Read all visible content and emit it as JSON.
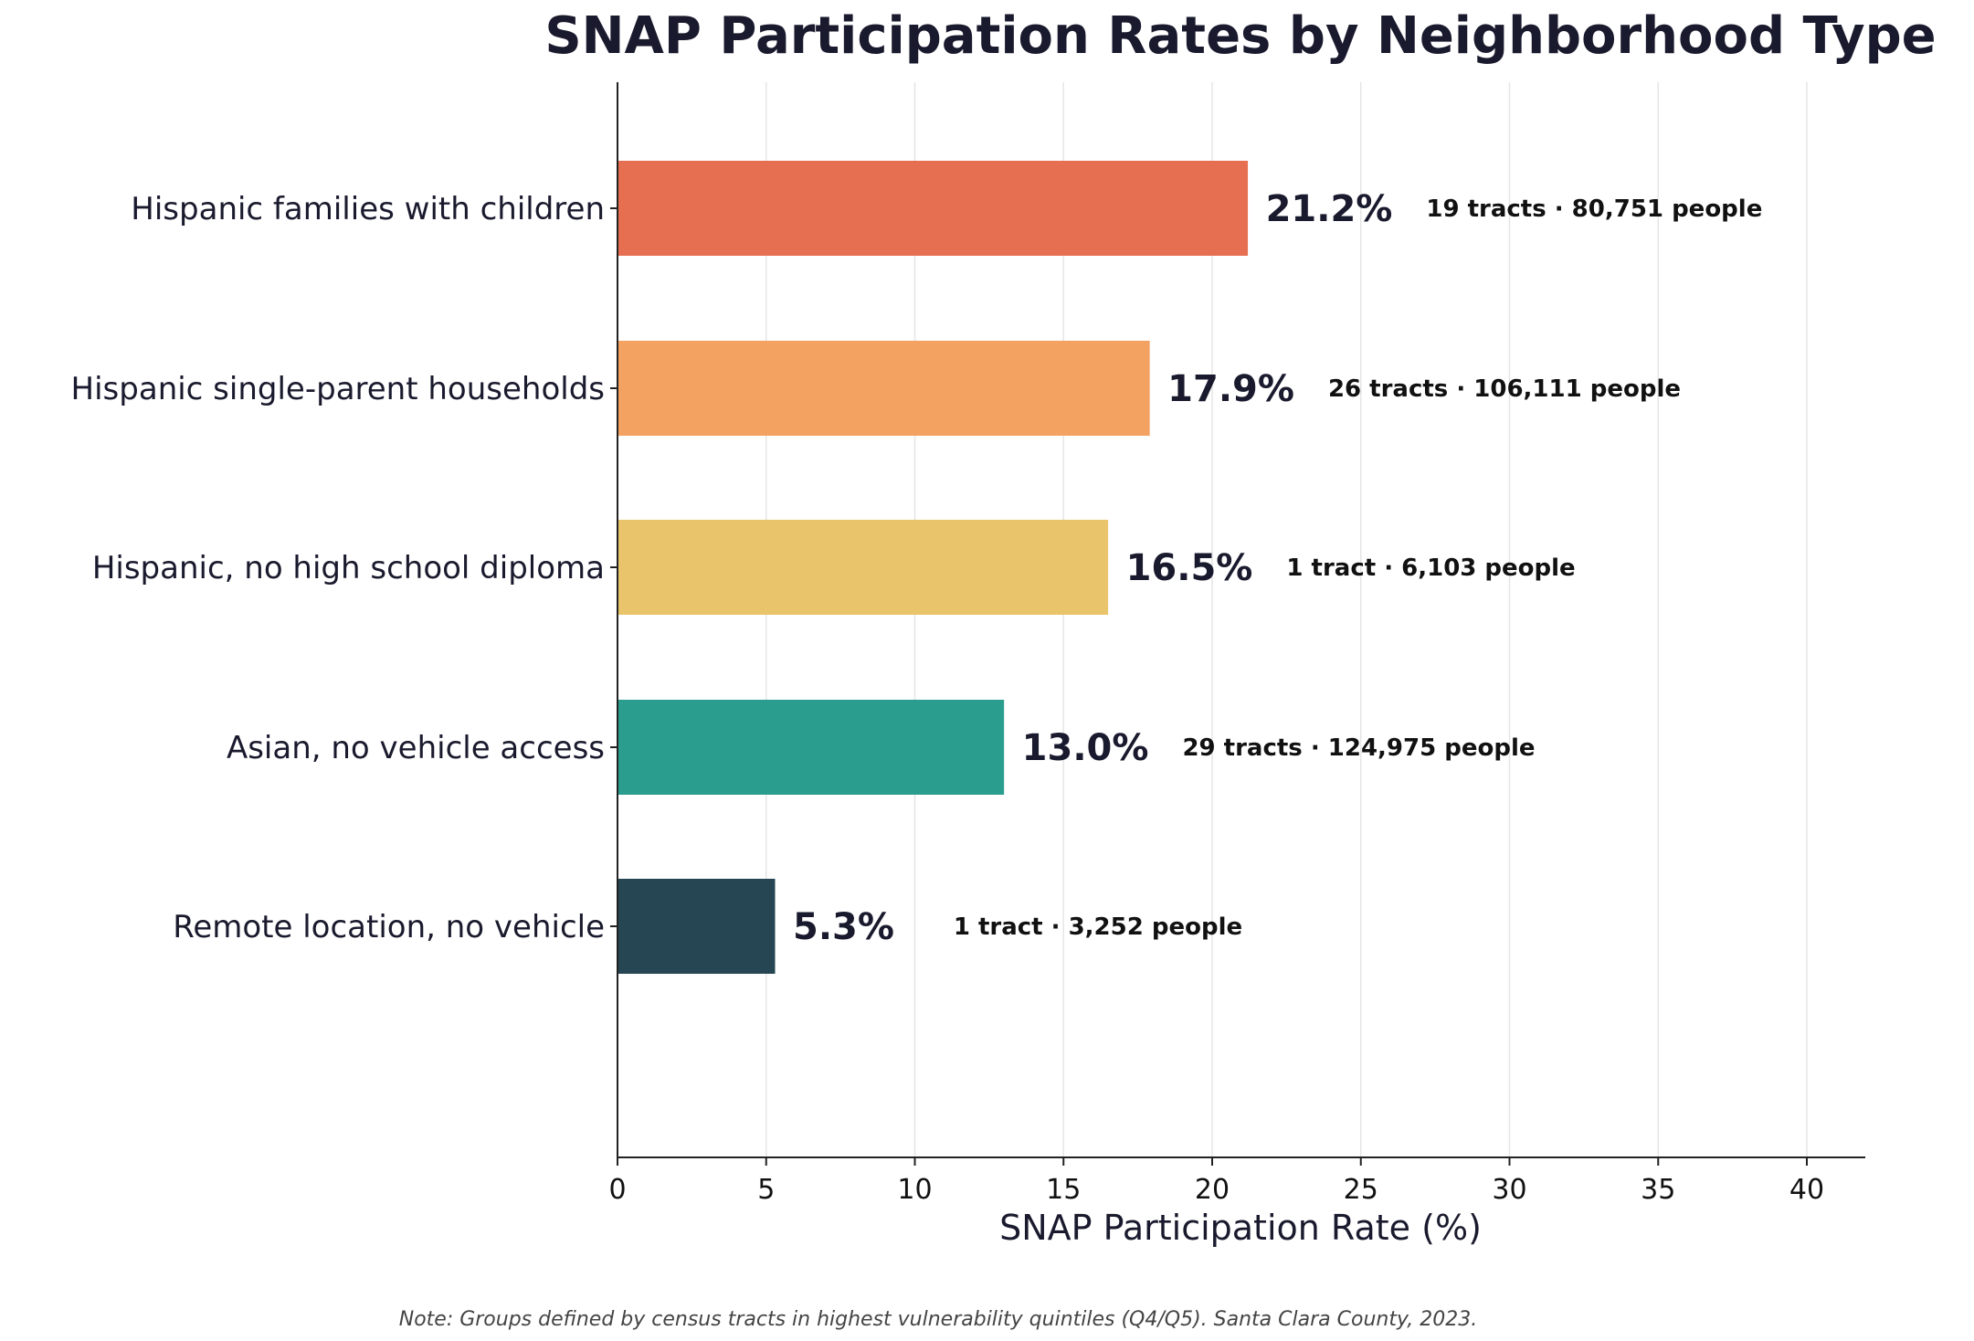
{
  "chart_data": {
    "type": "bar",
    "orientation": "horizontal",
    "title": "SNAP Participation Rates by Neighborhood Type",
    "xlabel": "SNAP Participation Rate (%)",
    "ylabel": "",
    "xlim": [
      0,
      42
    ],
    "xticks": [
      0,
      5,
      10,
      15,
      20,
      25,
      30,
      35,
      40
    ],
    "grid": "vertical",
    "categories": [
      "Hispanic families with children",
      "Hispanic single-parent households",
      "Hispanic, no high school diploma",
      "Asian, no vehicle access",
      "Remote location, no vehicle"
    ],
    "values": [
      21.2,
      17.9,
      16.5,
      13.0,
      5.3
    ],
    "value_labels": [
      "21.2%",
      "17.9%",
      "16.5%",
      "13.0%",
      "5.3%"
    ],
    "annotations": [
      "19 tracts · 80,751 people",
      "26 tracts · 106,111 people",
      "1 tract · 6,103 people",
      "29 tracts · 124,975 people",
      "1 tract · 3,252 people"
    ],
    "colors": [
      "#E76F51",
      "#F4A261",
      "#E9C46A",
      "#2A9D8F",
      "#264653"
    ],
    "note": "Note: Groups defined by census tracts in highest vulnerability quintiles (Q4/Q5). Santa Clara County, 2023."
  }
}
